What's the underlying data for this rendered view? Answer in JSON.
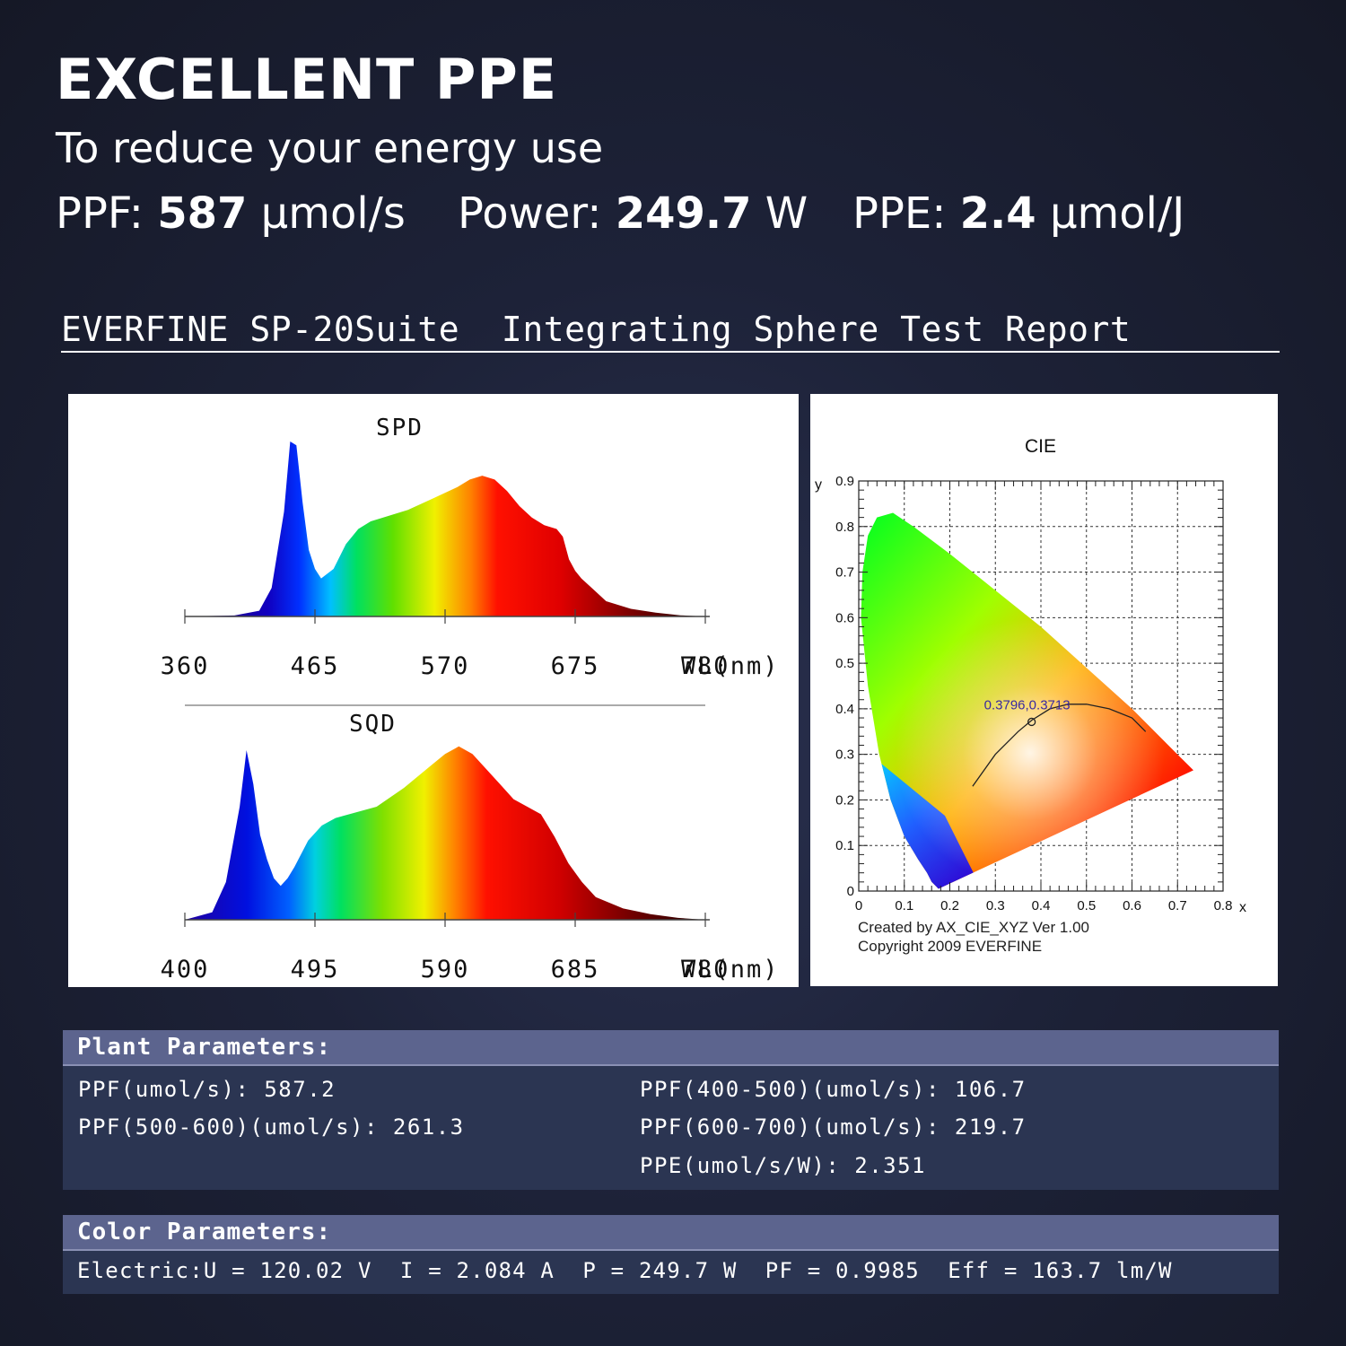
{
  "header": {
    "title": "EXCELLENT PPE",
    "subtitle": "To reduce your energy use",
    "stats": [
      {
        "label": "PPF: ",
        "value": "587",
        "unit": " μmol/s"
      },
      {
        "label": "Power: ",
        "value": "249.7",
        "unit": " W"
      },
      {
        "label": "PPE: ",
        "value": "2.4",
        "unit": " μmol/J"
      }
    ]
  },
  "report_title": "EVERFINE SP-20Suite  Integrating Sphere Test Report",
  "chart_data": [
    {
      "type": "area",
      "title": "SPD",
      "xlabel": "WL(nm)",
      "ticks": [
        "360",
        "465",
        "570",
        "675",
        "780"
      ],
      "xlim": [
        360,
        780
      ],
      "x": [
        360,
        400,
        420,
        430,
        440,
        445,
        450,
        455,
        460,
        465,
        470,
        480,
        490,
        500,
        510,
        520,
        540,
        560,
        580,
        590,
        600,
        610,
        620,
        630,
        640,
        650,
        660,
        665,
        670,
        675,
        680,
        690,
        700,
        720,
        740,
        760,
        780
      ],
      "y": [
        0,
        0.005,
        0.03,
        0.15,
        0.55,
        0.92,
        0.9,
        0.6,
        0.35,
        0.25,
        0.2,
        0.25,
        0.38,
        0.46,
        0.5,
        0.52,
        0.56,
        0.62,
        0.68,
        0.72,
        0.74,
        0.72,
        0.66,
        0.58,
        0.52,
        0.48,
        0.46,
        0.42,
        0.3,
        0.24,
        0.2,
        0.14,
        0.08,
        0.04,
        0.02,
        0.006,
        0
      ]
    },
    {
      "type": "area",
      "title": "SQD",
      "xlabel": "WL(nm)",
      "ticks": [
        "400",
        "495",
        "590",
        "685",
        "780"
      ],
      "xlim": [
        400,
        780
      ],
      "x": [
        400,
        420,
        430,
        440,
        445,
        450,
        455,
        460,
        465,
        470,
        475,
        480,
        490,
        500,
        510,
        520,
        540,
        560,
        580,
        590,
        600,
        610,
        620,
        630,
        640,
        650,
        660,
        670,
        680,
        690,
        700,
        720,
        740,
        760,
        780
      ],
      "y": [
        0,
        0.04,
        0.2,
        0.6,
        0.9,
        0.72,
        0.45,
        0.32,
        0.22,
        0.18,
        0.22,
        0.28,
        0.42,
        0.5,
        0.54,
        0.56,
        0.6,
        0.7,
        0.82,
        0.88,
        0.92,
        0.88,
        0.8,
        0.72,
        0.64,
        0.6,
        0.56,
        0.44,
        0.3,
        0.2,
        0.12,
        0.06,
        0.03,
        0.01,
        0
      ]
    },
    {
      "type": "scatter",
      "title": "CIE",
      "xlabel": "x",
      "ylabel": "y",
      "xlim": [
        0,
        0.8
      ],
      "ylim": [
        0,
        0.9
      ],
      "xticks": [
        "0",
        "0.1",
        "0.2",
        "0.3",
        "0.4",
        "0.5",
        "0.6",
        "0.7",
        "0.8"
      ],
      "yticks": [
        "0",
        "0.1",
        "0.2",
        "0.3",
        "0.4",
        "0.5",
        "0.6",
        "0.7",
        "0.8",
        "0.9"
      ],
      "gamut": [
        [
          0.175,
          0.005
        ],
        [
          0.17,
          0.01
        ],
        [
          0.16,
          0.02
        ],
        [
          0.15,
          0.04
        ],
        [
          0.13,
          0.07
        ],
        [
          0.1,
          0.12
        ],
        [
          0.07,
          0.2
        ],
        [
          0.045,
          0.3
        ],
        [
          0.02,
          0.45
        ],
        [
          0.005,
          0.6
        ],
        [
          0.008,
          0.7
        ],
        [
          0.02,
          0.78
        ],
        [
          0.04,
          0.82
        ],
        [
          0.075,
          0.83
        ],
        [
          0.12,
          0.8
        ],
        [
          0.2,
          0.74
        ],
        [
          0.3,
          0.66
        ],
        [
          0.4,
          0.58
        ],
        [
          0.5,
          0.49
        ],
        [
          0.6,
          0.4
        ],
        [
          0.7,
          0.3
        ],
        [
          0.735,
          0.265
        ],
        [
          0.175,
          0.005
        ]
      ],
      "locus": [
        [
          0.25,
          0.23
        ],
        [
          0.3,
          0.3
        ],
        [
          0.35,
          0.35
        ],
        [
          0.38,
          0.375
        ],
        [
          0.42,
          0.4
        ],
        [
          0.46,
          0.41
        ],
        [
          0.5,
          0.41
        ],
        [
          0.55,
          0.4
        ],
        [
          0.6,
          0.38
        ],
        [
          0.63,
          0.35
        ]
      ],
      "point": {
        "x": 0.3796,
        "y": 0.3713,
        "label": "0.3796,0.3713"
      },
      "notes": [
        "Created by AX_CIE_XYZ Ver 1.00",
        "Copyright 2009 EVERFINE"
      ]
    }
  ],
  "plant_params": {
    "title": "Plant Parameters:",
    "rows": [
      "PPF(umol/s): 587.2",
      "PPF(400-500)(umol/s): 106.7",
      "PPF(500-600)(umol/s): 261.3",
      "PPF(600-700)(umol/s): 219.7",
      "PPE(umol/s/W): 2.351"
    ]
  },
  "color_params": {
    "title": "Color Parameters:",
    "row": "Electric:U = 120.02 V  I = 2.084 A  P = 249.7 W  PF = 0.9985  Eff = 163.7 lm/W"
  }
}
